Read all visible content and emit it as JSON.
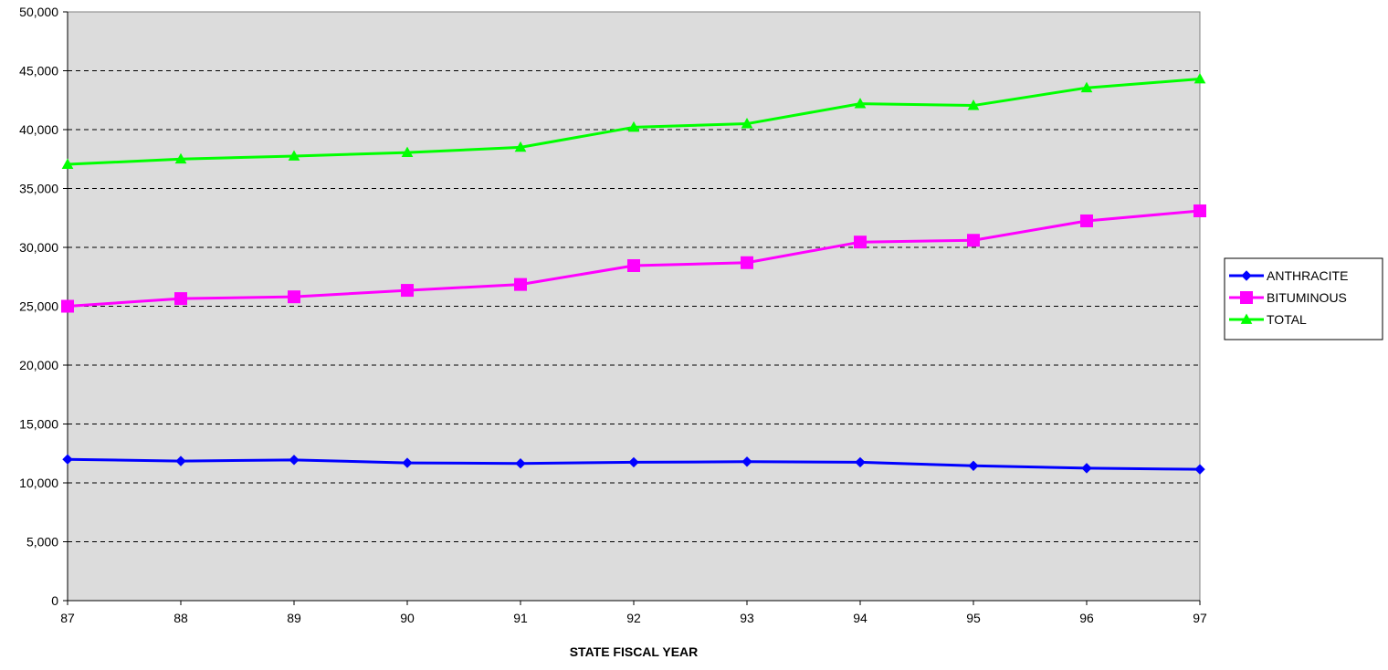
{
  "chart_data": {
    "type": "line",
    "title": "",
    "xlabel": "STATE FISCAL YEAR",
    "ylabel": "",
    "categories": [
      "87",
      "88",
      "89",
      "90",
      "91",
      "92",
      "93",
      "94",
      "95",
      "96",
      "97"
    ],
    "ylim": [
      0,
      50000
    ],
    "ytick_step": 5000,
    "ytick_labels": [
      "0",
      "5,000",
      "10,000",
      "15,000",
      "20,000",
      "25,000",
      "30,000",
      "35,000",
      "40,000",
      "45,000",
      "50,000"
    ],
    "grid": "horizontal dashed",
    "legend_position": "right",
    "plot_background": "#dcdcdc",
    "series": [
      {
        "name": "ANTHRACITE",
        "color": "#0000ff",
        "marker": "diamond",
        "values": [
          12000,
          11850,
          11950,
          11700,
          11650,
          11750,
          11800,
          11750,
          11450,
          11250,
          11150
        ]
      },
      {
        "name": "BITUMINOUS",
        "color": "#ff00ff",
        "marker": "square",
        "values": [
          25000,
          25650,
          25800,
          26350,
          26850,
          28450,
          28700,
          30450,
          30600,
          32250,
          33100
        ]
      },
      {
        "name": "TOTAL",
        "color": "#00ff00",
        "marker": "triangle",
        "values": [
          37050,
          37500,
          37750,
          38050,
          38500,
          40200,
          40500,
          42200,
          42050,
          43550,
          44300
        ]
      }
    ]
  }
}
